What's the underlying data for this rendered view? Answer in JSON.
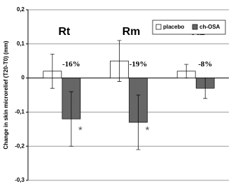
{
  "chart_data": {
    "type": "bar",
    "y_label": "Change in skin microrelief (T20-T0) (mm)",
    "categories": [
      "Rt",
      "Rm",
      "Rz"
    ],
    "series": [
      {
        "name": "placebo",
        "color": "#ffffff",
        "values": [
          0.02,
          0.05,
          0.02
        ],
        "errors": [
          0.05,
          0.06,
          0.02
        ]
      },
      {
        "name": "ch-OSA",
        "color": "#666666",
        "values": [
          -0.12,
          -0.13,
          -0.03
        ],
        "errors": [
          0.08,
          0.08,
          0.03
        ]
      }
    ],
    "percent_labels": [
      "-16%",
      "-19%",
      "-8%"
    ],
    "significance": [
      "*",
      "*",
      null
    ],
    "ylim": [
      -0.3,
      0.2
    ],
    "yticks": [
      {
        "value": -0.3,
        "label": "-0,3"
      },
      {
        "value": -0.2,
        "label": "-0,2"
      },
      {
        "value": -0.1,
        "label": "-0,1"
      },
      0,
      {
        "value": 0.1,
        "label": "0,1"
      },
      {
        "value": 0.2,
        "label": "0,2"
      }
    ],
    "grid": true,
    "legend": "upper right"
  }
}
